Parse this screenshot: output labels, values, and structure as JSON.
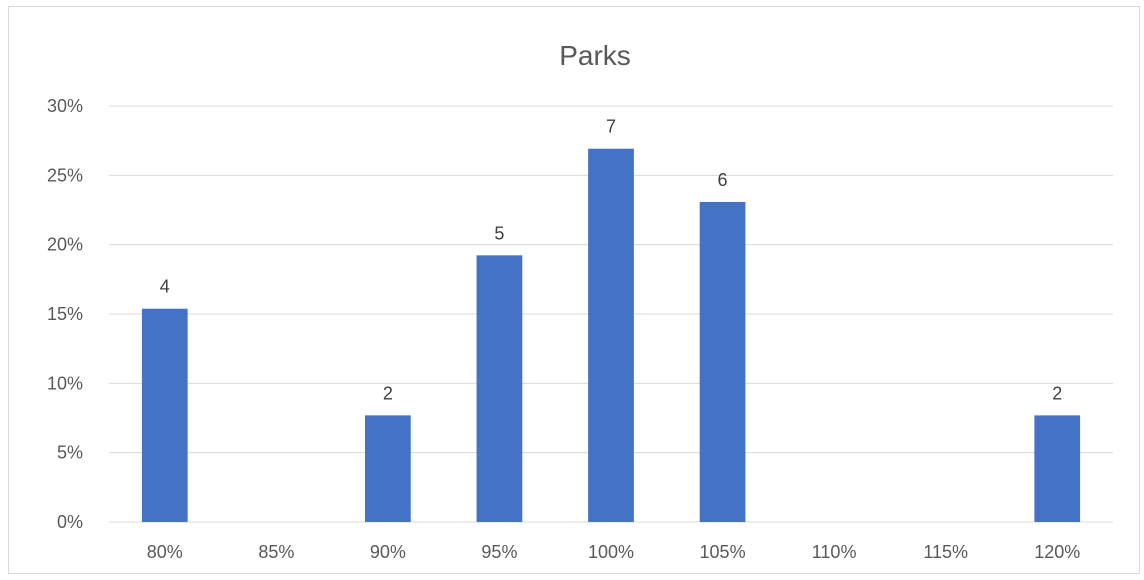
{
  "chart_data": {
    "type": "bar",
    "title": "Parks",
    "xlabel": "",
    "ylabel": "",
    "categories": [
      "80%",
      "85%",
      "90%",
      "95%",
      "100%",
      "105%",
      "110%",
      "115%",
      "120%"
    ],
    "values": [
      15.38,
      0,
      7.69,
      19.23,
      26.92,
      23.08,
      0,
      0,
      7.69
    ],
    "data_labels": [
      "4",
      "",
      "2",
      "5",
      "7",
      "6",
      "",
      "",
      "2"
    ],
    "ylim": [
      0,
      30
    ],
    "yticks": [
      0,
      5,
      10,
      15,
      20,
      25,
      30
    ],
    "ytick_labels": [
      "0%",
      "5%",
      "10%",
      "15%",
      "20%",
      "25%",
      "30%"
    ],
    "grid": true,
    "legend": "none",
    "bar_color": "#4472c4"
  }
}
